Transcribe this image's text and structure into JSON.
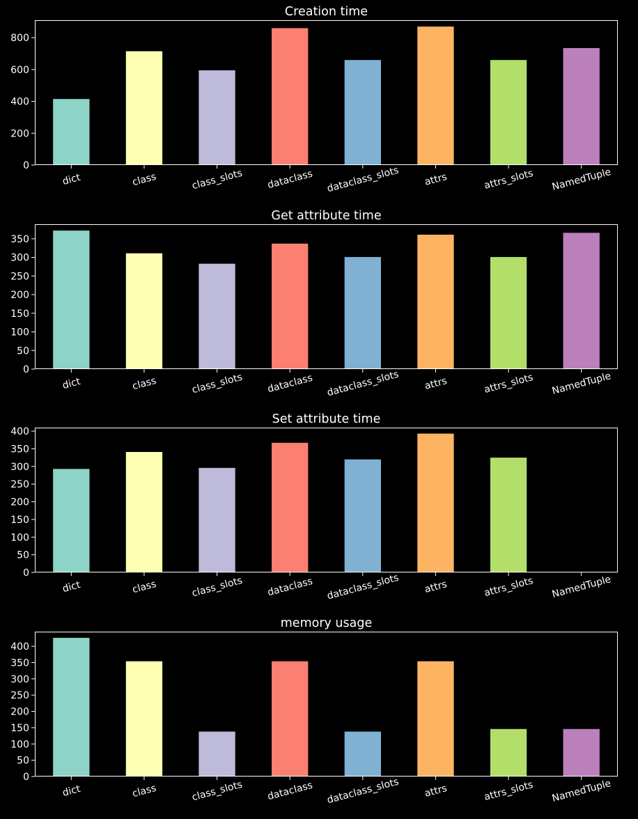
{
  "chart_data": [
    {
      "type": "bar",
      "title": "Creation time",
      "categories": [
        "dict",
        "class",
        "class_slots",
        "dataclass",
        "dataclass_slots",
        "attrs",
        "attrs_slots",
        "NamedTuple"
      ],
      "values": [
        415,
        715,
        595,
        860,
        660,
        870,
        660,
        735
      ],
      "ylim": [
        0,
        910
      ],
      "yticks": [
        0,
        200,
        400,
        600,
        800
      ],
      "grid": false
    },
    {
      "type": "bar",
      "title": "Get attribute time",
      "categories": [
        "dict",
        "class",
        "class_slots",
        "dataclass",
        "dataclass_slots",
        "attrs",
        "attrs_slots",
        "NamedTuple"
      ],
      "values": [
        372,
        311,
        283,
        337,
        301,
        361,
        301,
        366
      ],
      "ylim": [
        0,
        389
      ],
      "yticks": [
        0,
        50,
        100,
        150,
        200,
        250,
        300,
        350
      ],
      "grid": false
    },
    {
      "type": "bar",
      "title": "Set attribute time",
      "categories": [
        "dict",
        "class",
        "class_slots",
        "dataclass",
        "dataclass_slots",
        "attrs",
        "attrs_slots",
        "NamedTuple"
      ],
      "values": [
        293,
        341,
        296,
        367,
        320,
        393,
        325,
        0
      ],
      "ylim": [
        0,
        410
      ],
      "yticks": [
        0,
        50,
        100,
        150,
        200,
        250,
        300,
        350,
        400
      ],
      "grid": false
    },
    {
      "type": "bar",
      "title": "memory usage",
      "categories": [
        "dict",
        "class",
        "class_slots",
        "dataclass",
        "dataclass_slots",
        "attrs",
        "attrs_slots",
        "NamedTuple"
      ],
      "values": [
        426,
        354,
        138,
        354,
        138,
        354,
        146,
        146
      ],
      "ylim": [
        0,
        445
      ],
      "yticks": [
        0,
        50,
        100,
        150,
        200,
        250,
        300,
        350,
        400
      ],
      "grid": false
    }
  ],
  "colors": [
    "#8dd3c7",
    "#ffffb3",
    "#bebada",
    "#fb8072",
    "#80b1d3",
    "#fdb462",
    "#b3de69",
    "#bc80bd"
  ]
}
